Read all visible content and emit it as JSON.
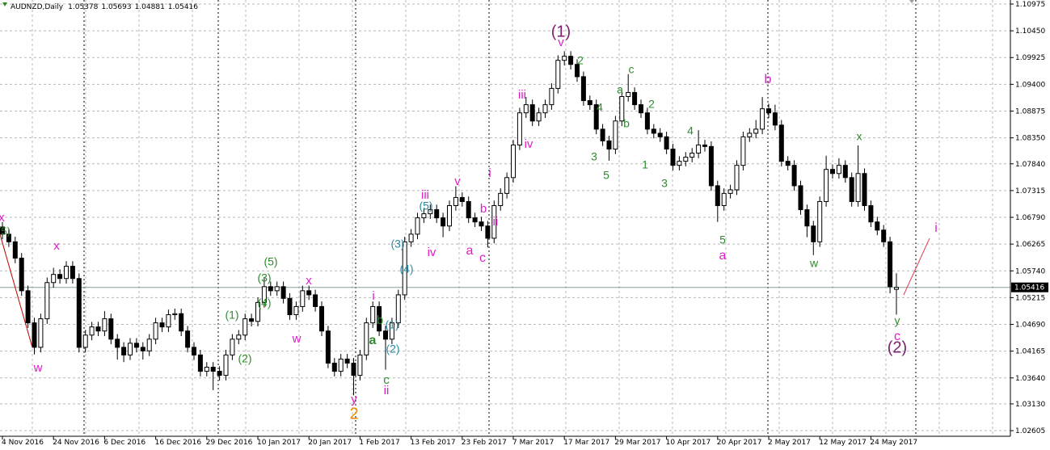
{
  "chart_data": {
    "type": "candlestick",
    "title": "AUDNZD,Daily",
    "categories": [
      "4 Nov 2016",
      null,
      null,
      null,
      null,
      null,
      null,
      null,
      "24 Nov 2016",
      null,
      null,
      null,
      null,
      null,
      null,
      null,
      "6 Dec 2016",
      null,
      null,
      null,
      null,
      null,
      null,
      null,
      "16 Dec 2016",
      null,
      null,
      null,
      null,
      null,
      null,
      null,
      "29 Dec 2016",
      null,
      null,
      null,
      null,
      null,
      null,
      null,
      "10 Jan 2017",
      null,
      null,
      null,
      null,
      null,
      null,
      null,
      "20 Jan 2017",
      null,
      null,
      null,
      null,
      null,
      null,
      null,
      "1 Feb 2017",
      null,
      null,
      null,
      null,
      null,
      null,
      null,
      "13 Feb 2017",
      null,
      null,
      null,
      null,
      null,
      null,
      null,
      "23 Feb 2017",
      null,
      null,
      null,
      null,
      null,
      null,
      null,
      "7 Mar 2017",
      null,
      null,
      null,
      null,
      null,
      null,
      null,
      "17 Mar 2017",
      null,
      null,
      null,
      null,
      null,
      null,
      null,
      "29 Mar 2017",
      null,
      null,
      null,
      null,
      null,
      null,
      null,
      "10 Apr 2017",
      null,
      null,
      null,
      null,
      null,
      null,
      null,
      "20 Apr 2017",
      null,
      null,
      null,
      null,
      null,
      null,
      null,
      "2 May 2017",
      null,
      null,
      null,
      null,
      null,
      null,
      null,
      "12 May 2017",
      null,
      null,
      null,
      null,
      null,
      null,
      null,
      "24 May 2017",
      null,
      null,
      null,
      null
    ],
    "open": [
      1.066,
      1.0646,
      1.0631,
      1.0599,
      1.0535,
      1.0472,
      1.0424,
      1.048,
      1.0551,
      1.0567,
      1.0559,
      1.0583,
      1.0559,
      1.0424,
      1.0448,
      1.0464,
      1.0456,
      1.048,
      1.044,
      1.0424,
      1.0409,
      1.0432,
      1.0424,
      1.0417,
      1.044,
      1.0472,
      1.0464,
      1.0488,
      1.049,
      1.0456,
      1.0424,
      1.0409,
      1.0377,
      1.0385,
      1.0377,
      1.0369,
      1.0409,
      1.044,
      1.0448,
      1.048,
      1.0475,
      1.0512,
      1.0543,
      1.0535,
      1.0543,
      1.052,
      1.0488,
      1.0504,
      1.0535,
      1.0527,
      1.0504,
      1.0456,
      1.0393,
      1.0377,
      1.0401,
      1.0393,
      1.0369,
      1.0409,
      1.0472,
      1.0504,
      1.0456,
      1.044,
      1.0472,
      1.0527,
      1.0631,
      1.0646,
      1.0678,
      1.0686,
      1.0694,
      1.0678,
      1.0662,
      1.0702,
      1.0718,
      1.071,
      1.0678,
      1.067,
      1.0662,
      1.0638,
      1.0702,
      1.0726,
      1.0757,
      1.0821,
      1.0884,
      1.09,
      1.0868,
      1.0884,
      1.09,
      1.0932,
      1.0987,
      1.0995,
      1.0979,
      1.0955,
      1.0908,
      1.09,
      1.0852,
      1.0829,
      1.0813,
      1.0868,
      1.0916,
      1.0924,
      1.09,
      1.0884,
      1.0852,
      1.0844,
      1.0837,
      1.0813,
      1.0781,
      1.0789,
      1.0797,
      1.0805,
      1.0821,
      1.0818,
      1.0741,
      1.0702,
      1.0726,
      1.0733,
      1.0781,
      1.0837,
      1.0844,
      1.0852,
      1.0892,
      1.0884,
      1.086,
      1.0789,
      1.0781,
      1.0741,
      1.0694,
      1.0662,
      1.0631,
      1.071,
      1.0773,
      1.0765,
      1.0781,
      1.0757,
      1.071,
      1.0765,
      1.0702,
      1.067,
      1.0654,
      1.0631,
      1.05378
    ],
    "high": [
      1.067,
      1.0656,
      1.0641,
      1.0609,
      1.0545,
      1.0482,
      1.049,
      1.0561,
      1.058,
      1.0577,
      1.0593,
      1.0593,
      1.0569,
      1.0458,
      1.0474,
      1.0474,
      1.0495,
      1.049,
      1.045,
      1.0434,
      1.0442,
      1.0442,
      1.0434,
      1.045,
      1.0482,
      1.0482,
      1.0498,
      1.05,
      1.05,
      1.0466,
      1.0434,
      1.0419,
      1.0395,
      1.0395,
      1.0387,
      1.0419,
      1.045,
      1.0458,
      1.049,
      1.049,
      1.0522,
      1.056,
      1.0553,
      1.0553,
      1.0553,
      1.053,
      1.0514,
      1.0545,
      1.0545,
      1.0537,
      1.0514,
      1.0466,
      1.0403,
      1.0411,
      1.0411,
      1.0403,
      1.0419,
      1.0482,
      1.0514,
      1.0514,
      1.0466,
      1.0482,
      1.0537,
      1.0641,
      1.0656,
      1.0688,
      1.0696,
      1.0704,
      1.0704,
      1.0688,
      1.0712,
      1.074,
      1.0728,
      1.072,
      1.0688,
      1.068,
      1.0672,
      1.0712,
      1.0736,
      1.0767,
      1.0831,
      1.0894,
      1.0915,
      1.091,
      1.0894,
      1.091,
      1.0942,
      1.0997,
      1.1005,
      1.1005,
      1.0989,
      1.0965,
      1.0918,
      1.091,
      1.0862,
      1.0839,
      1.0878,
      1.0926,
      1.096,
      1.0934,
      1.091,
      1.0894,
      1.0862,
      1.0854,
      1.0847,
      1.0823,
      1.0799,
      1.0807,
      1.0815,
      1.085,
      1.0831,
      1.0828,
      1.0751,
      1.0736,
      1.0743,
      1.0791,
      1.0847,
      1.0854,
      1.087,
      1.0915,
      1.0902,
      1.09,
      1.087,
      1.0799,
      1.0791,
      1.0751,
      1.0704,
      1.0672,
      1.072,
      1.08,
      1.0783,
      1.0795,
      1.0791,
      1.0767,
      1.082,
      1.0775,
      1.0712,
      1.068,
      1.0664,
      1.0641,
      1.05693
    ],
    "low": [
      1.0636,
      1.0621,
      1.0589,
      1.0525,
      1.0462,
      1.041,
      1.0414,
      1.047,
      1.0541,
      1.0549,
      1.0549,
      1.0549,
      1.0414,
      1.0414,
      1.0438,
      1.0446,
      1.0446,
      1.043,
      1.04,
      1.0395,
      1.0399,
      1.0414,
      1.04,
      1.0407,
      1.043,
      1.0454,
      1.0454,
      1.0478,
      1.0446,
      1.0414,
      1.0399,
      1.0367,
      1.0367,
      1.034,
      1.0359,
      1.0359,
      1.0399,
      1.043,
      1.0438,
      1.0465,
      1.0465,
      1.0502,
      1.0525,
      1.0525,
      1.051,
      1.0478,
      1.0478,
      1.0494,
      1.0517,
      1.0494,
      1.0446,
      1.0383,
      1.0367,
      1.0367,
      1.0383,
      1.033,
      1.0359,
      1.0399,
      1.0462,
      1.0446,
      1.038,
      1.043,
      1.0462,
      1.0517,
      1.0621,
      1.0636,
      1.0668,
      1.0676,
      1.0668,
      1.064,
      1.0652,
      1.0692,
      1.07,
      1.0668,
      1.066,
      1.0652,
      1.062,
      1.0628,
      1.0692,
      1.0716,
      1.0747,
      1.0811,
      1.0874,
      1.0858,
      1.0858,
      1.0874,
      1.089,
      1.0922,
      1.0977,
      1.0969,
      1.0945,
      1.0898,
      1.089,
      1.0842,
      1.0819,
      1.079,
      1.0803,
      1.0858,
      1.0906,
      1.089,
      1.0874,
      1.0842,
      1.0834,
      1.0827,
      1.0803,
      1.0771,
      1.0771,
      1.0779,
      1.0787,
      1.0795,
      1.0808,
      1.0731,
      1.067,
      1.0692,
      1.0716,
      1.0723,
      1.0771,
      1.0827,
      1.0834,
      1.0842,
      1.0874,
      1.085,
      1.0779,
      1.0771,
      1.0731,
      1.0684,
      1.064,
      1.0605,
      1.0621,
      1.07,
      1.0755,
      1.0755,
      1.0747,
      1.07,
      1.07,
      1.0692,
      1.066,
      1.0644,
      1.0621,
      1.053,
      1.04881
    ],
    "close": [
      1.0646,
      1.0631,
      1.0599,
      1.0535,
      1.0472,
      1.0424,
      1.048,
      1.0551,
      1.0567,
      1.0559,
      1.0583,
      1.0559,
      1.0424,
      1.0448,
      1.0464,
      1.0456,
      1.048,
      1.044,
      1.0424,
      1.0409,
      1.0432,
      1.0424,
      1.0417,
      1.044,
      1.0472,
      1.0464,
      1.0488,
      1.049,
      1.0456,
      1.0424,
      1.0409,
      1.0377,
      1.0385,
      1.0377,
      1.0369,
      1.0409,
      1.044,
      1.0448,
      1.048,
      1.0475,
      1.0512,
      1.0543,
      1.0535,
      1.0543,
      1.052,
      1.0488,
      1.0504,
      1.0535,
      1.0527,
      1.0504,
      1.0456,
      1.0393,
      1.0377,
      1.0401,
      1.0393,
      1.0369,
      1.0409,
      1.0472,
      1.0504,
      1.0456,
      1.044,
      1.0472,
      1.0527,
      1.0631,
      1.0646,
      1.0678,
      1.0686,
      1.0694,
      1.0678,
      1.0662,
      1.0702,
      1.0718,
      1.071,
      1.0678,
      1.067,
      1.0662,
      1.0638,
      1.0702,
      1.0726,
      1.0757,
      1.0821,
      1.0884,
      1.09,
      1.0868,
      1.0884,
      1.09,
      1.0932,
      1.0987,
      1.0995,
      1.0979,
      1.0955,
      1.0908,
      1.09,
      1.0852,
      1.0829,
      1.0813,
      1.0868,
      1.0916,
      1.0924,
      1.09,
      1.0884,
      1.0852,
      1.0844,
      1.0837,
      1.0813,
      1.0781,
      1.0789,
      1.0797,
      1.0805,
      1.0821,
      1.0818,
      1.0741,
      1.0702,
      1.0726,
      1.0733,
      1.0781,
      1.0837,
      1.0844,
      1.0852,
      1.0892,
      1.0884,
      1.086,
      1.0789,
      1.0781,
      1.0741,
      1.0694,
      1.0662,
      1.0631,
      1.071,
      1.0773,
      1.0765,
      1.0781,
      1.0757,
      1.071,
      1.0765,
      1.0702,
      1.067,
      1.0654,
      1.0631,
      1.0543,
      1.05416
    ],
    "ylim": [
      1.02495,
      1.11054
    ],
    "yticks": [
      1.02605,
      {
        "value": 1.0313,
        "label": "1.03130"
      },
      {
        "value": 1.0364,
        "label": "1.03640"
      },
      1.04165,
      {
        "value": 1.0469,
        "label": "1.04690"
      },
      1.05215,
      {
        "value": 1.0574,
        "label": "1.05740"
      },
      1.06265,
      {
        "value": 1.0679,
        "label": "1.06790"
      },
      1.07315,
      {
        "value": 1.0784,
        "label": "1.07840"
      },
      {
        "value": 1.0835,
        "label": "1.08350"
      },
      1.08875,
      {
        "value": 1.094,
        "label": "1.09400"
      },
      1.09925,
      {
        "value": 1.1045,
        "label": "1.10450"
      },
      1.10975
    ],
    "grid": true,
    "up_color": "#ffffff",
    "down_color": "#000000",
    "annotations": [
      {
        "text": "x",
        "color": "#e01ec8"
      },
      {
        "text": "(5)",
        "color": "#2e8b2e"
      },
      {
        "text": "x",
        "color": "#e01ec8"
      },
      {
        "text": "w",
        "color": "#e01ec8"
      },
      {
        "text": "(1)",
        "color": "#2e8b2e"
      },
      {
        "text": "(2)",
        "color": "#2e8b2e"
      },
      {
        "text": "(5)",
        "color": "#2e8b2e"
      },
      {
        "text": "(3)",
        "color": "#2e8b2e"
      },
      {
        "text": "(4)",
        "color": "#2e8b2e"
      },
      {
        "text": "x",
        "color": "#e01ec8"
      },
      {
        "text": "w",
        "color": "#e01ec8"
      },
      {
        "text": "i",
        "color": "#e01ec8"
      },
      {
        "text": "b",
        "color": "#2e8b2e"
      },
      {
        "text": "a",
        "color": "#2e8b2e"
      },
      {
        "text": "(1)",
        "color": "#2a8aa0"
      },
      {
        "text": "(2)",
        "color": "#2a8aa0"
      },
      {
        "text": "c",
        "color": "#2e8b2e"
      },
      {
        "text": "ii",
        "color": "#e01ec8"
      },
      {
        "text": "y",
        "color": "#e01ec8"
      },
      {
        "text": "2",
        "color": "#f08c00"
      },
      {
        "text": "(3)",
        "color": "#2a8aa0"
      },
      {
        "text": "(4)",
        "color": "#2a8aa0"
      },
      {
        "text": "(5)",
        "color": "#2a8aa0"
      },
      {
        "text": "iii",
        "color": "#e01ec8"
      },
      {
        "text": "iv",
        "color": "#e01ec8"
      },
      {
        "text": "v",
        "color": "#e01ec8"
      },
      {
        "text": "a",
        "color": "#e01ec8"
      },
      {
        "text": "c",
        "color": "#e01ec8"
      },
      {
        "text": "b",
        "color": "#e01ec8"
      },
      {
        "text": "i",
        "color": "#e01ec8"
      },
      {
        "text": "ii",
        "color": "#e01ec8"
      },
      {
        "text": "iii",
        "color": "#e01ec8"
      },
      {
        "text": "iv",
        "color": "#e01ec8"
      },
      {
        "text": "(1)",
        "color": "#7b1f6e"
      },
      {
        "text": "v",
        "color": "#e01ec8"
      },
      {
        "text": "2",
        "color": "#2e8b2e"
      },
      {
        "text": "4",
        "color": "#2e8b2e"
      },
      {
        "text": "3",
        "color": "#2e8b2e"
      },
      {
        "text": "5",
        "color": "#2e8b2e"
      },
      {
        "text": "a",
        "color": "#2e8b2e"
      },
      {
        "text": "c",
        "color": "#2e8b2e"
      },
      {
        "text": "b",
        "color": "#2e8b2e"
      },
      {
        "text": "2",
        "color": "#2e8b2e"
      },
      {
        "text": "1",
        "color": "#2e8b2e"
      },
      {
        "text": "4",
        "color": "#2e8b2e"
      },
      {
        "text": "3",
        "color": "#2e8b2e"
      },
      {
        "text": "5",
        "color": "#2e8b2e"
      },
      {
        "text": "a",
        "color": "#e01ec8"
      },
      {
        "text": "b",
        "color": "#e01ec8"
      },
      {
        "text": "x",
        "color": "#2e8b2e"
      },
      {
        "text": "w",
        "color": "#2e8b2e"
      },
      {
        "text": "y",
        "color": "#2e8b2e"
      },
      {
        "text": "c",
        "color": "#e01ec8"
      },
      {
        "text": "(2)",
        "color": "#7b1f6e"
      },
      {
        "text": "i",
        "color": "#e01ec8"
      }
    ]
  }
}
